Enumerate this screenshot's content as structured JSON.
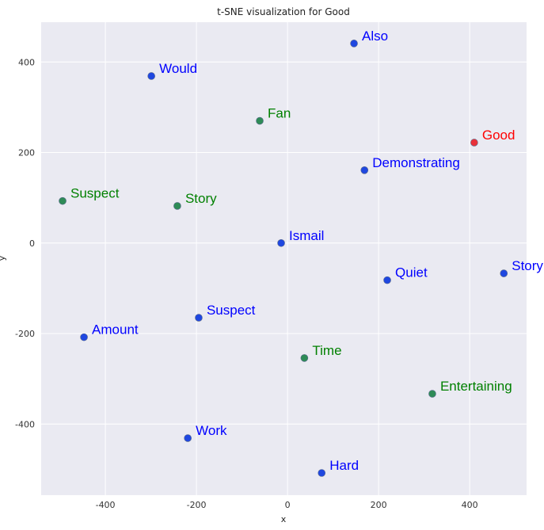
{
  "chart_data": {
    "type": "scatter",
    "title": "t-SNE visualization for Good",
    "xlabel": "x",
    "ylabel": "y",
    "xlim": [
      -541,
      525
    ],
    "ylim": [
      -557,
      488
    ],
    "xticks": [
      -400,
      -200,
      0,
      200,
      400
    ],
    "yticks": [
      400,
      200,
      0,
      -200,
      -400
    ],
    "grid": true,
    "colors": {
      "background": "#eaeaf2",
      "grid": "#ffffff",
      "blue_point": "#1f47e0",
      "blue_text": "#0000ff",
      "green_point": "#2e8b57",
      "green_text": "#008000",
      "red_point": "#e8313a",
      "red_text": "#ff0000"
    },
    "points": [
      {
        "label": "Also",
        "x": 146,
        "y": 441,
        "group": "blue"
      },
      {
        "label": "Would",
        "x": -299,
        "y": 369,
        "group": "blue"
      },
      {
        "label": "Fan",
        "x": -61,
        "y": 270,
        "group": "green"
      },
      {
        "label": "Good",
        "x": 410,
        "y": 222,
        "group": "red"
      },
      {
        "label": "Demonstrating",
        "x": 169,
        "y": 161,
        "group": "blue"
      },
      {
        "label": "Suspect",
        "x": -494,
        "y": 93,
        "group": "green"
      },
      {
        "label": "Story",
        "x": -242,
        "y": 82,
        "group": "green"
      },
      {
        "label": "Ismail",
        "x": -14,
        "y": 0,
        "group": "blue"
      },
      {
        "label": "Quiet",
        "x": 219,
        "y": -82,
        "group": "blue"
      },
      {
        "label": "Story",
        "x": 475,
        "y": -67,
        "group": "blue"
      },
      {
        "label": "Suspect",
        "x": -195,
        "y": -165,
        "group": "blue"
      },
      {
        "label": "Amount",
        "x": -447,
        "y": -208,
        "group": "blue"
      },
      {
        "label": "Time",
        "x": 37,
        "y": -254,
        "group": "green"
      },
      {
        "label": "Entertaining",
        "x": 318,
        "y": -333,
        "group": "green"
      },
      {
        "label": "Work",
        "x": -219,
        "y": -431,
        "group": "blue"
      },
      {
        "label": "Hard",
        "x": 75,
        "y": -508,
        "group": "blue"
      }
    ]
  }
}
